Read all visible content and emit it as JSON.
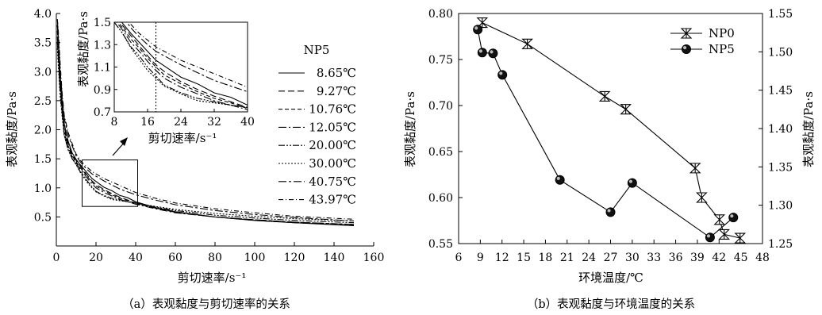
{
  "chart_data": [
    {
      "type": "line",
      "caption": "（a）表观黏度与剪切速率的关系",
      "xlabel": "剪切速率/s⁻¹",
      "ylabel": "表观黏度/Pa·s",
      "xlim": [
        0,
        160
      ],
      "ylim": [
        0,
        4.0
      ],
      "xticks": [
        "0",
        "20",
        "40",
        "60",
        "80",
        "100",
        "120",
        "140",
        "160"
      ],
      "yticks": [
        "0.5",
        "1.0",
        "1.5",
        "2.0",
        "2.5",
        "3.0",
        "3.5",
        "4.0"
      ],
      "legend_title": "NP5",
      "legend_position": "right",
      "grid": false,
      "x": [
        0.5,
        1,
        2,
        3,
        4,
        6,
        8,
        10,
        12,
        14,
        16,
        18,
        20,
        24,
        28,
        32,
        36,
        40,
        50,
        60,
        80,
        100,
        120,
        150
      ],
      "series": [
        {
          "name": "8.65℃",
          "dash": "",
          "values": [
            3.9,
            3.6,
            2.9,
            2.45,
            2.1,
            1.8,
            1.6,
            1.49,
            1.4,
            1.32,
            1.24,
            1.16,
            1.11,
            1.01,
            0.95,
            0.87,
            0.83,
            0.76,
            0.66,
            0.59,
            0.5,
            0.44,
            0.4,
            0.35
          ]
        },
        {
          "name": "9.27℃",
          "dash": "8,4",
          "values": [
            3.8,
            3.5,
            2.8,
            2.4,
            2.05,
            1.75,
            1.57,
            1.47,
            1.38,
            1.29,
            1.2,
            1.12,
            1.06,
            0.97,
            0.9,
            0.84,
            0.79,
            0.74,
            0.65,
            0.58,
            0.5,
            0.44,
            0.4,
            0.36
          ]
        },
        {
          "name": "10.76℃",
          "dash": "5,3",
          "values": [
            3.7,
            3.4,
            2.75,
            2.35,
            2.0,
            1.72,
            1.55,
            1.45,
            1.35,
            1.27,
            1.18,
            1.1,
            1.03,
            0.95,
            0.88,
            0.82,
            0.78,
            0.73,
            0.65,
            0.58,
            0.5,
            0.45,
            0.41,
            0.37
          ]
        },
        {
          "name": "12.05℃",
          "dash": "10,3,2,3",
          "values": [
            3.6,
            3.3,
            2.7,
            2.3,
            1.95,
            1.7,
            1.53,
            1.43,
            1.32,
            1.24,
            1.15,
            1.07,
            1.0,
            0.92,
            0.86,
            0.8,
            0.76,
            0.72,
            0.64,
            0.57,
            0.5,
            0.45,
            0.41,
            0.37
          ]
        },
        {
          "name": "20.00℃",
          "dash": "8,2,2,2,2,2",
          "values": [
            3.5,
            3.2,
            2.6,
            2.25,
            1.9,
            1.65,
            1.5,
            1.4,
            1.28,
            1.2,
            1.1,
            1.02,
            0.94,
            0.87,
            0.82,
            0.79,
            0.76,
            0.74,
            0.67,
            0.61,
            0.53,
            0.48,
            0.44,
            0.4
          ]
        },
        {
          "name": "30.00℃",
          "dash": "2,2",
          "values": [
            3.4,
            3.1,
            2.55,
            2.2,
            1.9,
            1.65,
            1.5,
            1.4,
            1.27,
            1.17,
            1.07,
            1.0,
            0.93,
            0.86,
            0.8,
            0.78,
            0.76,
            0.74,
            0.68,
            0.63,
            0.56,
            0.51,
            0.47,
            0.43
          ]
        },
        {
          "name": "40.75℃",
          "dash": "10,3,3,3",
          "values": [
            3.8,
            3.6,
            3.0,
            2.55,
            2.2,
            1.9,
            1.72,
            1.55,
            1.45,
            1.37,
            1.3,
            1.24,
            1.2,
            1.12,
            1.05,
            0.98,
            0.93,
            0.88,
            0.79,
            0.71,
            0.61,
            0.54,
            0.49,
            0.43
          ]
        },
        {
          "name": "43.97℃",
          "dash": "6,3,1,3",
          "values": [
            3.9,
            3.7,
            3.1,
            2.6,
            2.25,
            1.95,
            1.76,
            1.58,
            1.48,
            1.4,
            1.34,
            1.28,
            1.24,
            1.16,
            1.1,
            1.04,
            0.98,
            0.92,
            0.82,
            0.74,
            0.64,
            0.57,
            0.51,
            0.46
          ]
        }
      ],
      "zoom_box": {
        "x": [
          13,
          41
        ],
        "y": [
          0.68,
          1.48
        ]
      },
      "inset": {
        "xlabel": "剪切速率/s⁻¹",
        "ylabel": "表观黏度/Pa·s",
        "xlim": [
          8,
          40
        ],
        "ylim": [
          0.7,
          1.5
        ],
        "xticks": [
          "8",
          "16",
          "24",
          "32",
          "40"
        ],
        "yticks": [
          "0.7",
          "0.9",
          "1.1",
          "1.3",
          "1.5"
        ],
        "vline_x": 18
      }
    },
    {
      "type": "line",
      "caption": "（b）表观黏度与环境温度的关系",
      "xlabel": "环境温度/℃",
      "ylabel": "表观黏度/Pa·s",
      "y2label": "表观黏度/Pa·s",
      "xlim": [
        6,
        48
      ],
      "ylim": [
        0.55,
        0.8
      ],
      "y2lim": [
        1.25,
        1.55
      ],
      "xticks": [
        "6",
        "9",
        "12",
        "15",
        "18",
        "21",
        "24",
        "27",
        "30",
        "33",
        "36",
        "39",
        "42",
        "45",
        "48"
      ],
      "yticks": [
        "0.55",
        "0.60",
        "0.65",
        "0.70",
        "0.75",
        "0.80"
      ],
      "y2ticks": [
        "1.25",
        "1.30",
        "1.35",
        "1.40",
        "1.45",
        "1.50",
        "1.55"
      ],
      "legend_position": "top-right",
      "grid": false,
      "series": [
        {
          "name": "NP0",
          "marker": "hourglass-x",
          "axis": "left",
          "x": [
            9.27,
            15.5,
            26.2,
            29.1,
            38.7,
            39.6,
            42.05,
            42.7,
            44.9
          ],
          "y": [
            0.79,
            0.767,
            0.71,
            0.696,
            0.632,
            0.6,
            0.576,
            0.56,
            0.556
          ]
        },
        {
          "name": "NP5",
          "marker": "ball",
          "axis": "right",
          "x": [
            8.65,
            9.27,
            10.76,
            12.05,
            20.0,
            27.0,
            30.0,
            40.75,
            43.97
          ],
          "y": [
            1.529,
            1.499,
            1.498,
            1.47,
            1.333,
            1.291,
            1.329,
            1.258,
            1.284
          ]
        }
      ]
    }
  ]
}
